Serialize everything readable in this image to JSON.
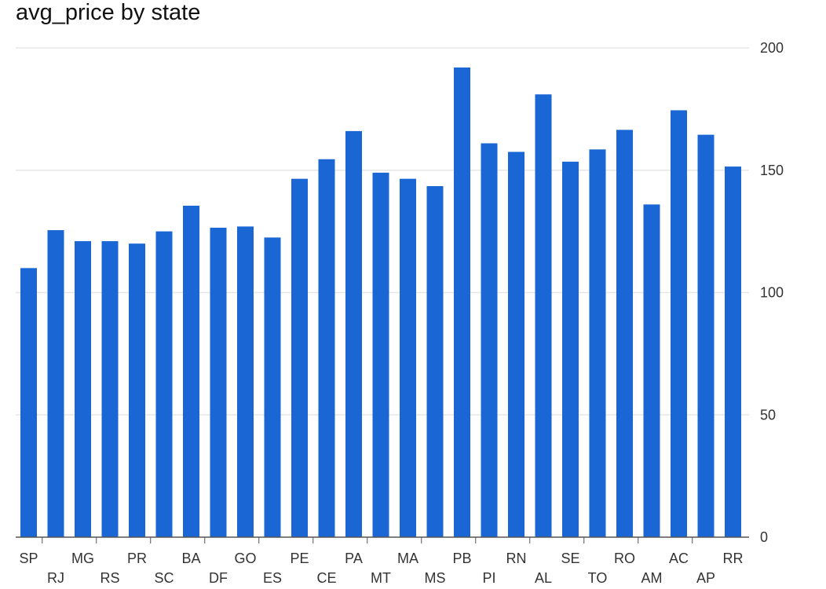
{
  "chart_data": {
    "type": "bar",
    "title": "avg_price by state",
    "xlabel": "",
    "ylabel": "",
    "ylim": [
      0,
      200
    ],
    "y_ticks": [
      0,
      50,
      100,
      150,
      200
    ],
    "y_axis_position": "right",
    "grid": true,
    "legend": "none",
    "bar_color": "#1a66d4",
    "grid_color": "#e6e6e6",
    "axis_color": "#555555",
    "label_color": "#333333",
    "categories": [
      "SP",
      "RJ",
      "MG",
      "RS",
      "PR",
      "SC",
      "BA",
      "DF",
      "GO",
      "ES",
      "PE",
      "CE",
      "PA",
      "MT",
      "MA",
      "MS",
      "PB",
      "PI",
      "RN",
      "AL",
      "SE",
      "TO",
      "RO",
      "AM",
      "AC",
      "AP",
      "RR"
    ],
    "values": [
      110,
      125.5,
      121,
      121,
      120,
      125,
      135.5,
      126.5,
      127,
      122.5,
      146.5,
      154.5,
      166,
      149,
      146.5,
      143.5,
      192,
      161,
      157.5,
      181,
      153.5,
      158.5,
      166.5,
      136,
      174.5,
      164.5,
      151.5
    ]
  }
}
